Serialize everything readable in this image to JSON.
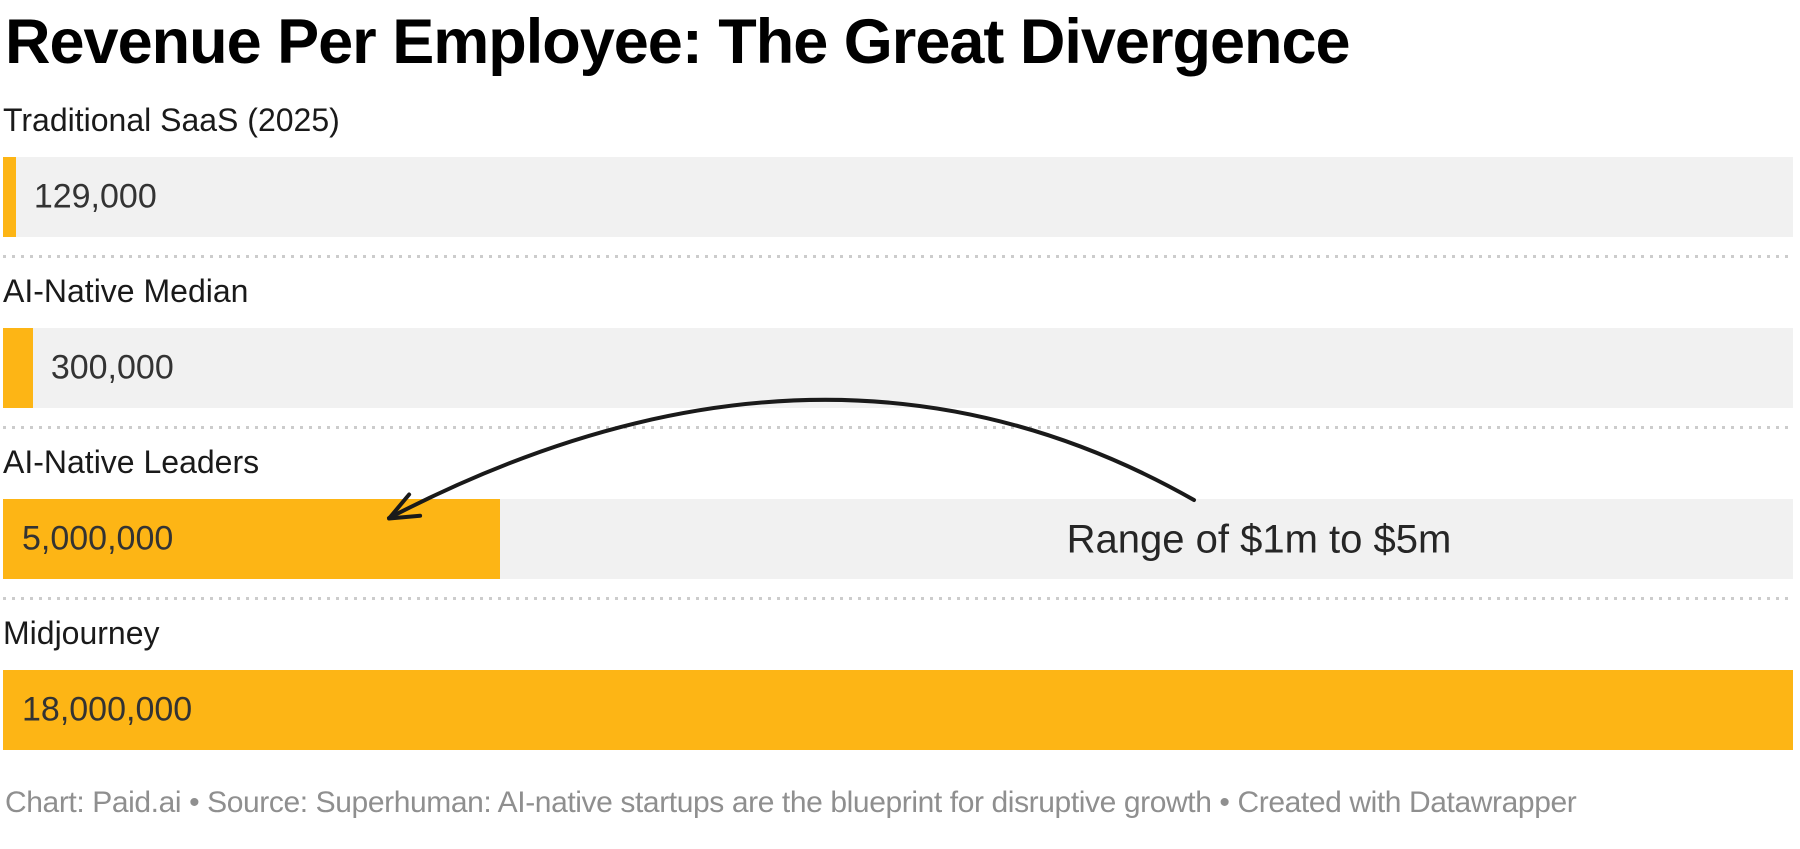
{
  "title": "Revenue Per Employee: The Great Divergence",
  "chart_data": {
    "type": "bar",
    "orientation": "horizontal",
    "title": "Revenue Per Employee: The Great Divergence",
    "categories": [
      "Traditional SaaS (2025)",
      "AI-Native Median",
      "AI-Native Leaders",
      "Midjourney"
    ],
    "values": [
      129000,
      300000,
      5000000,
      18000000
    ],
    "xlim": [
      0,
      18000000
    ],
    "grid": false,
    "legend": false,
    "annotations": [
      {
        "text": "Range of $1m to $5m",
        "target_category": "AI-Native Leaders",
        "arrow": true
      }
    ],
    "bars": [
      {
        "label": "Traditional SaaS (2025)",
        "value": 129000,
        "value_label": "129,000",
        "fraction": 0.0071667,
        "value_inside": false
      },
      {
        "label": "AI-Native Median",
        "value": 300000,
        "value_label": "300,000",
        "fraction": 0.0166667,
        "value_inside": false
      },
      {
        "label": "AI-Native Leaders",
        "value": 5000000,
        "value_label": "5,000,000",
        "fraction": 0.2777778,
        "value_inside": true
      },
      {
        "label": "Midjourney",
        "value": 18000000,
        "value_label": "18,000,000",
        "fraction": 1.0,
        "value_inside": true
      }
    ]
  },
  "annotation": {
    "text": "Range of $1m to $5m"
  },
  "footer": {
    "text": "Chart: Paid.ai • Source: Superhuman: AI-native startups are the blueprint for disruptive growth • Created with Datawrapper"
  },
  "colors": {
    "bar": "#fdb515",
    "track": "#f1f1f1",
    "title": "#000000",
    "label": "#1a1a1a",
    "value": "#333333",
    "annotation": "#262626",
    "arrow": "#1a1a1a",
    "separator": "#cccccc",
    "footer": "#8f8f8f",
    "background": "#ffffff"
  }
}
